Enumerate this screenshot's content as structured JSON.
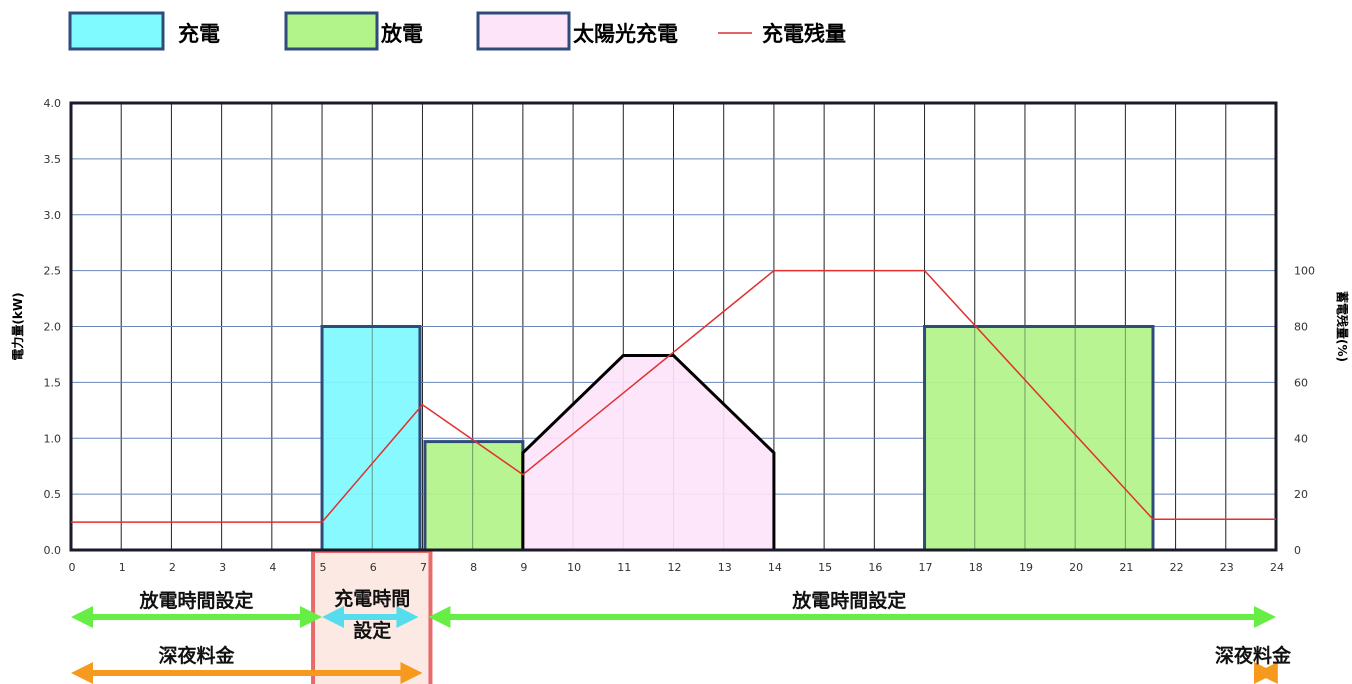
{
  "legend": [
    {
      "label": "充電",
      "fill": "#7ffaff",
      "stroke": "#2e4b7a"
    },
    {
      "label": "放電",
      "fill": "#b3f48a",
      "stroke": "#2e4b7a"
    },
    {
      "label": "太陽光充電",
      "fill": "#fde4f8",
      "stroke": "#2e4b7a"
    },
    {
      "label": "充電残量",
      "line": "#e03030"
    }
  ],
  "chart_data": {
    "type": "bar",
    "xlim": [
      0,
      24
    ],
    "x_ticks": [
      "0",
      "1",
      "2",
      "3",
      "4",
      "5",
      "6",
      "7",
      "8",
      "9",
      "10",
      "11",
      "12",
      "13",
      "14",
      "15",
      "16",
      "17",
      "18",
      "19",
      "20",
      "21",
      "22",
      "23",
      "24"
    ],
    "ylabel": "電力量(kW)",
    "ylim": [
      0,
      4.0
    ],
    "y_ticks": [
      "0.0",
      "0.5",
      "1.0",
      "1.5",
      "2.0",
      "2.5",
      "3.0",
      "3.5",
      "4.0"
    ],
    "y2label": "蓄電残量(%)",
    "y2lim": [
      0,
      160
    ],
    "y2_ticks": [
      "0",
      "20",
      "40",
      "60",
      "80",
      "100"
    ],
    "grid": true,
    "series": [
      {
        "name": "充電",
        "kind": "bar",
        "color": "#7ffaff",
        "blocks": [
          {
            "x0": 5,
            "x1": 6.95,
            "value": 2.0
          }
        ]
      },
      {
        "name": "放電",
        "kind": "bar",
        "color": "#b3f48a",
        "blocks": [
          {
            "x0": 7.05,
            "x1": 9.0,
            "value": 0.97
          },
          {
            "x0": 17.0,
            "x1": 21.55,
            "value": 2.0
          }
        ]
      },
      {
        "name": "太陽光充電",
        "kind": "area",
        "color": "#fde4f8",
        "x": [
          9,
          9,
          11,
          12,
          14,
          14
        ],
        "values": [
          0,
          0.87,
          1.74,
          1.74,
          0.87,
          0
        ]
      },
      {
        "name": "充電残量",
        "kind": "line",
        "axis": "y2",
        "color": "#e03030",
        "x": [
          0,
          5,
          7,
          9,
          14,
          17,
          21.55,
          24
        ],
        "values": [
          10,
          10,
          52,
          27,
          100,
          100,
          11,
          11
        ]
      }
    ],
    "annotations": {
      "top_bands": [
        {
          "label": "放電時間設定",
          "from": 0,
          "to": 5,
          "color": "#66ee44"
        },
        {
          "label": "充電時間設定",
          "from": 5,
          "to": 7,
          "color": "#55ddee"
        },
        {
          "label": "放電時間設定",
          "from": 7,
          "to": 24,
          "color": "#66ee44"
        }
      ],
      "bottom_bands": [
        {
          "label": "深夜料金",
          "from": 0,
          "to": 7,
          "color": "#f59a1e"
        },
        {
          "label": "深夜料金",
          "from": 23,
          "to": 24,
          "color": "#f59a1e"
        }
      ],
      "highlight": {
        "from": 5,
        "to": 7,
        "color": "#e86a6a"
      }
    }
  }
}
